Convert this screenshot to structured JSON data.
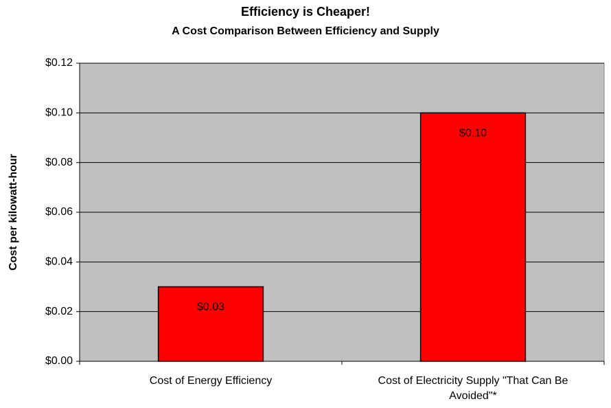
{
  "chart_data": {
    "type": "bar",
    "title": "Efficiency is Cheaper!",
    "subtitle": "A Cost Comparison Between Efficiency and Supply",
    "y_label": "Cost per kilowatt-hour",
    "categories": [
      "Cost of Energy Efficiency",
      "Cost of Electricity Supply \"That Can Be Avoided\"*"
    ],
    "values": [
      0.03,
      0.1
    ],
    "value_labels": [
      "$0.03",
      "$0.10"
    ],
    "color": "#ff0000",
    "ylim": [
      0,
      0.12
    ],
    "yticks": [
      {
        "value": 0,
        "label": "$0.00"
      },
      {
        "value": 0.02,
        "label": "$0.02"
      },
      {
        "value": 0.04,
        "label": "$0.04"
      },
      {
        "value": 0.06,
        "label": "$0.06"
      },
      {
        "value": 0.08,
        "label": "$0.08"
      },
      {
        "value": 0.1,
        "label": "$0.10"
      },
      {
        "value": 0.12,
        "label": "$0.12"
      }
    ],
    "grid": true
  }
}
